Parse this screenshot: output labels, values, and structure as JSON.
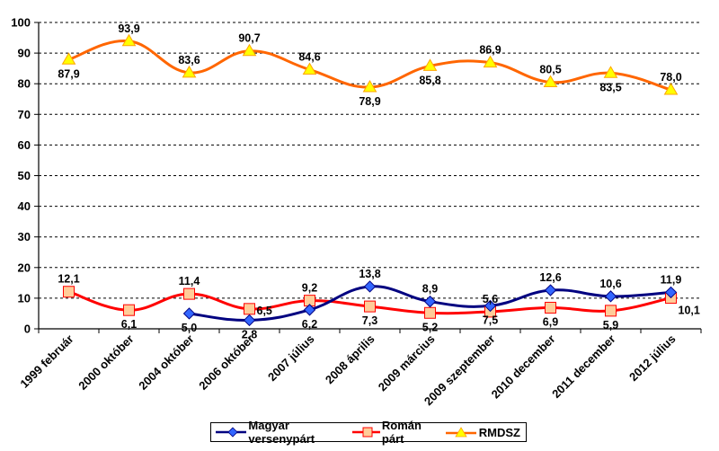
{
  "chart_data": {
    "type": "line",
    "title": "",
    "xlabel": "",
    "ylabel": "",
    "ylim": [
      0,
      100
    ],
    "yticks": [
      0,
      10,
      20,
      30,
      40,
      50,
      60,
      70,
      80,
      90,
      100
    ],
    "grid": true,
    "legend_position": "bottom",
    "categories": [
      "1999 február",
      "2000 október",
      "2004 október",
      "2006 október",
      "2007 július",
      "2008 április",
      "2009 március",
      "2009 szeptember",
      "2010 december",
      "2011 december",
      "2012 július"
    ],
    "series": [
      {
        "name": "Magyar versenypárt",
        "color": "#000080",
        "marker": "diamond",
        "marker_fill": "#3366FF",
        "values": [
          null,
          null,
          5.0,
          2.8,
          6.2,
          13.8,
          8.9,
          7.5,
          12.6,
          10.6,
          11.9
        ],
        "labels": [
          "",
          "",
          "5,0",
          "2,8",
          "6,2",
          "13,8",
          "8,9",
          "7,5",
          "12,6",
          "10,6",
          "11,9"
        ]
      },
      {
        "name": "Román párt",
        "color": "#FF0000",
        "marker": "square",
        "marker_fill": "#FFCC99",
        "values": [
          12.1,
          6.1,
          11.4,
          6.5,
          9.2,
          7.3,
          5.2,
          5.6,
          6.9,
          5.9,
          10.1
        ],
        "labels": [
          "12,1",
          "6,1",
          "11,4",
          "6,5",
          "9,2",
          "7,3",
          "5,2",
          "5,6",
          "6,9",
          "5,9",
          "10,1"
        ]
      },
      {
        "name": "RMDSZ",
        "color": "#FF6600",
        "marker": "triangle",
        "marker_fill": "#FFFF00",
        "values": [
          87.9,
          93.9,
          83.6,
          90.7,
          84.6,
          78.9,
          85.8,
          86.9,
          80.5,
          83.5,
          78.0
        ],
        "labels": [
          "87,9",
          "93,9",
          "83,6",
          "90,7",
          "84,6",
          "78,9",
          "85,8",
          "86,9",
          "80,5",
          "83,5",
          "78,0"
        ]
      }
    ]
  }
}
